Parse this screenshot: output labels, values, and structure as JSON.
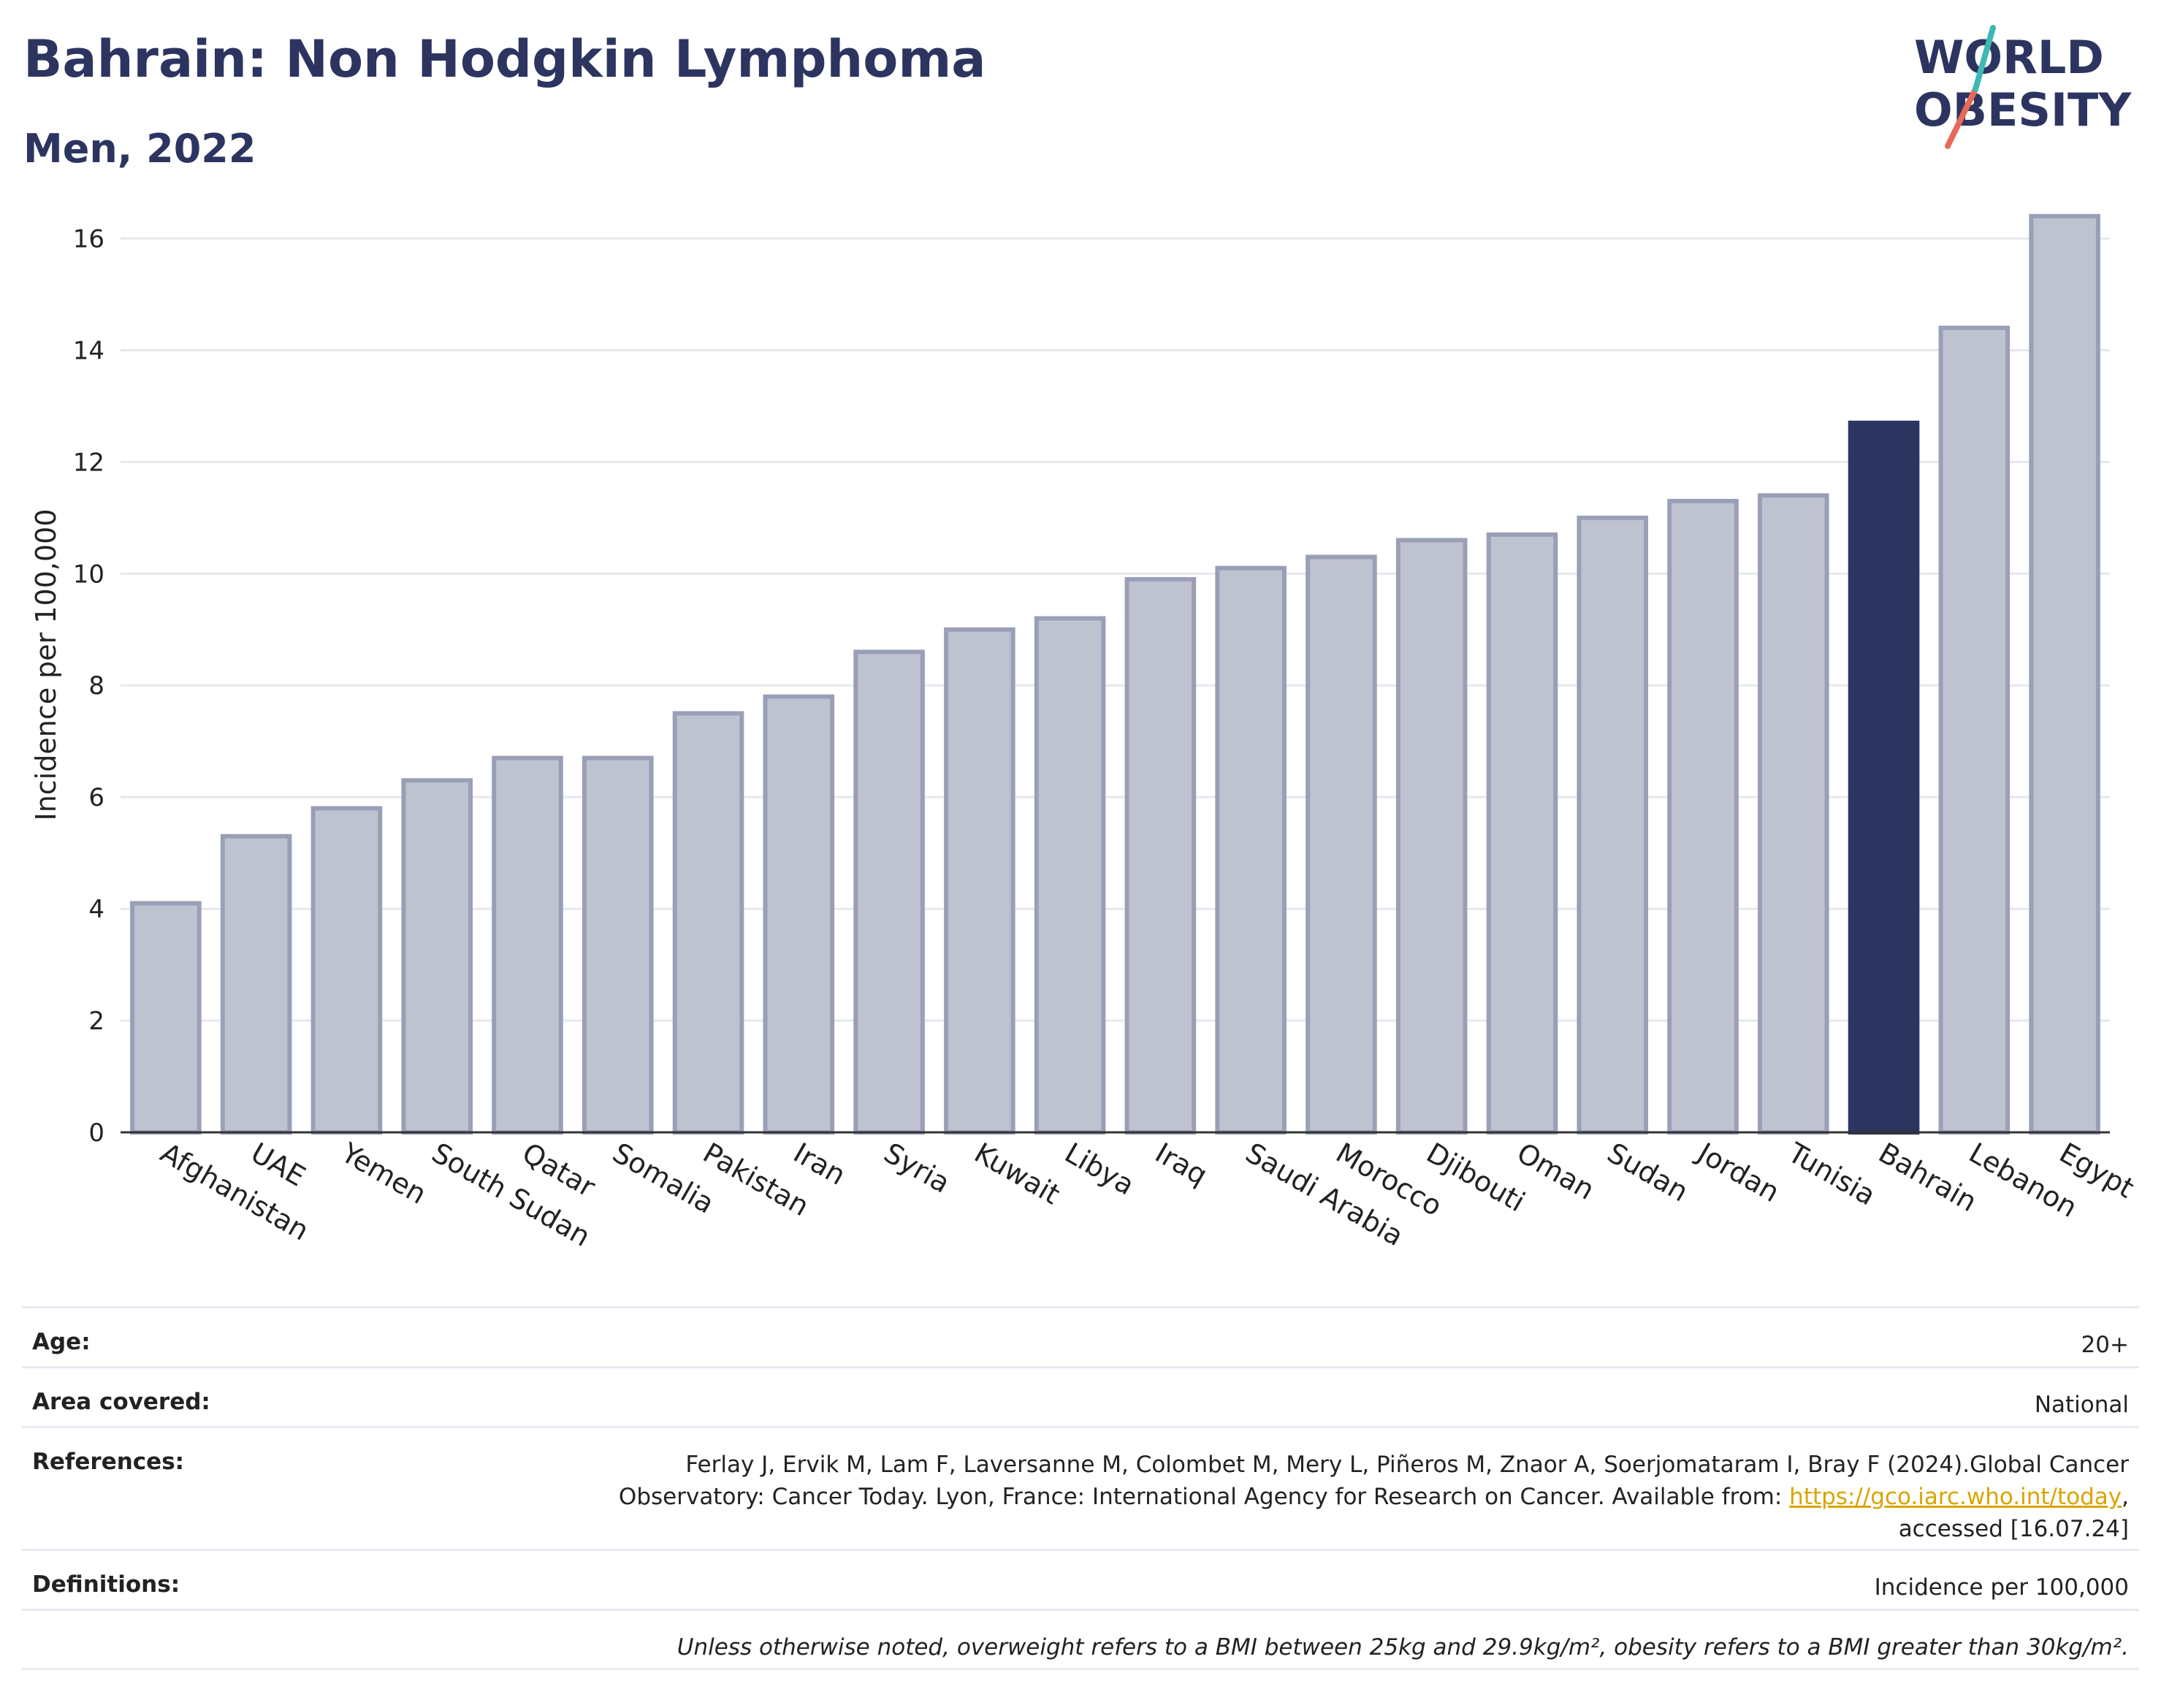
{
  "header": {
    "title": "Bahrain: Non Hodgkin Lymphoma",
    "subtitle": "Men, 2022"
  },
  "logo": {
    "line1": "WORLD",
    "line2": "OBESITY"
  },
  "colors": {
    "highlight": "#2c3560",
    "bar": "#bfc2cf",
    "bar_outline": "#9a9fb8",
    "text_dark": "#2c3560",
    "link": "#d9a400"
  },
  "chart_data": {
    "type": "bar",
    "categories": [
      "Afghanistan",
      "UAE",
      "Yemen",
      "South Sudan",
      "Qatar",
      "Somalia",
      "Pakistan",
      "Iran",
      "Syria",
      "Kuwait",
      "Libya",
      "Iraq",
      "Saudi Arabia",
      "Morocco",
      "Djibouti",
      "Oman",
      "Sudan",
      "Jordan",
      "Tunisia",
      "Bahrain",
      "Lebanon",
      "Egypt"
    ],
    "values": [
      4.1,
      5.3,
      5.8,
      6.3,
      6.7,
      6.7,
      7.5,
      7.8,
      8.6,
      9.0,
      9.2,
      9.9,
      10.1,
      10.3,
      10.6,
      10.7,
      11.0,
      11.3,
      11.4,
      12.7,
      14.4,
      16.4
    ],
    "highlight": "Bahrain",
    "ylabel": "Incidence per 100,000",
    "xlabel": "",
    "ylim": [
      0,
      17
    ],
    "yticks": [
      0,
      2,
      4,
      6,
      8,
      10,
      12,
      14,
      16
    ],
    "grid": true
  },
  "info": {
    "age_label": "Age:",
    "age_value": "20+",
    "area_label": "Area covered:",
    "area_value": "National",
    "references_label": "References:",
    "references_line1": "Ferlay J, Ervik M, Lam F, Laversanne M, Colombet M, Mery L, Piñeros M, Znaor A, Soerjomataram I, Bray F (2024).Global Cancer",
    "references_line2_pre": "Observatory: Cancer Today. Lyon, France: International Agency for Research on Cancer. Available from: ",
    "references_link": "https://gco.iarc.who.int/today",
    "references_line2_post": ",",
    "references_line3": "accessed [16.07.24]",
    "definitions_label": "Definitions:",
    "definitions_value": "Incidence per 100,000",
    "note": "Unless otherwise noted, overweight refers to a BMI between 25kg and 29.9kg/m², obesity refers to a BMI greater than 30kg/m²."
  }
}
